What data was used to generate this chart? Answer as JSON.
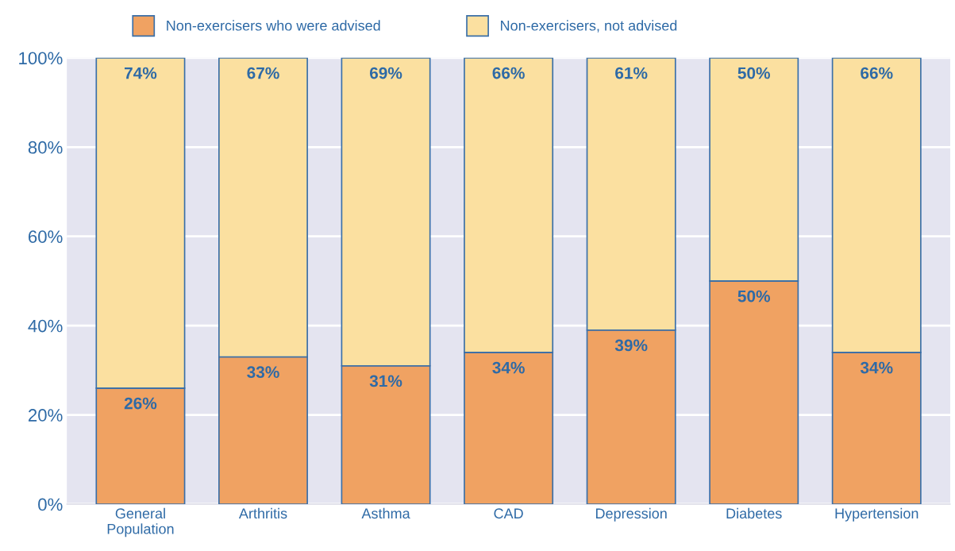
{
  "chart_data": {
    "type": "bar",
    "stacked": true,
    "categories": [
      "General\nPopulation",
      "Arthritis",
      "Asthma",
      "CAD",
      "Depression",
      "Diabetes",
      "Hypertension"
    ],
    "series": [
      {
        "name": "Non-exercisers who were advised",
        "color": "#f0a262",
        "values": [
          26,
          33,
          31,
          34,
          39,
          50,
          34
        ],
        "value_labels": [
          "26%",
          "33%",
          "31%",
          "34%",
          "39%",
          "50%",
          "34%"
        ]
      },
      {
        "name": "Non-exercisers, not advised",
        "color": "#fbe0a0",
        "values": [
          74,
          67,
          69,
          66,
          61,
          50,
          66
        ],
        "value_labels": [
          "74%",
          "67%",
          "69%",
          "66%",
          "61%",
          "50%",
          "66%"
        ]
      }
    ],
    "ylim": [
      0,
      100
    ],
    "yticks": [
      {
        "value": 0,
        "label": "0%"
      },
      {
        "value": 20,
        "label": "20%"
      },
      {
        "value": 40,
        "label": "40%"
      },
      {
        "value": 60,
        "label": "60%"
      },
      {
        "value": 80,
        "label": "80%"
      },
      {
        "value": 100,
        "label": "100%"
      }
    ],
    "grid": "y",
    "legend": "top"
  }
}
